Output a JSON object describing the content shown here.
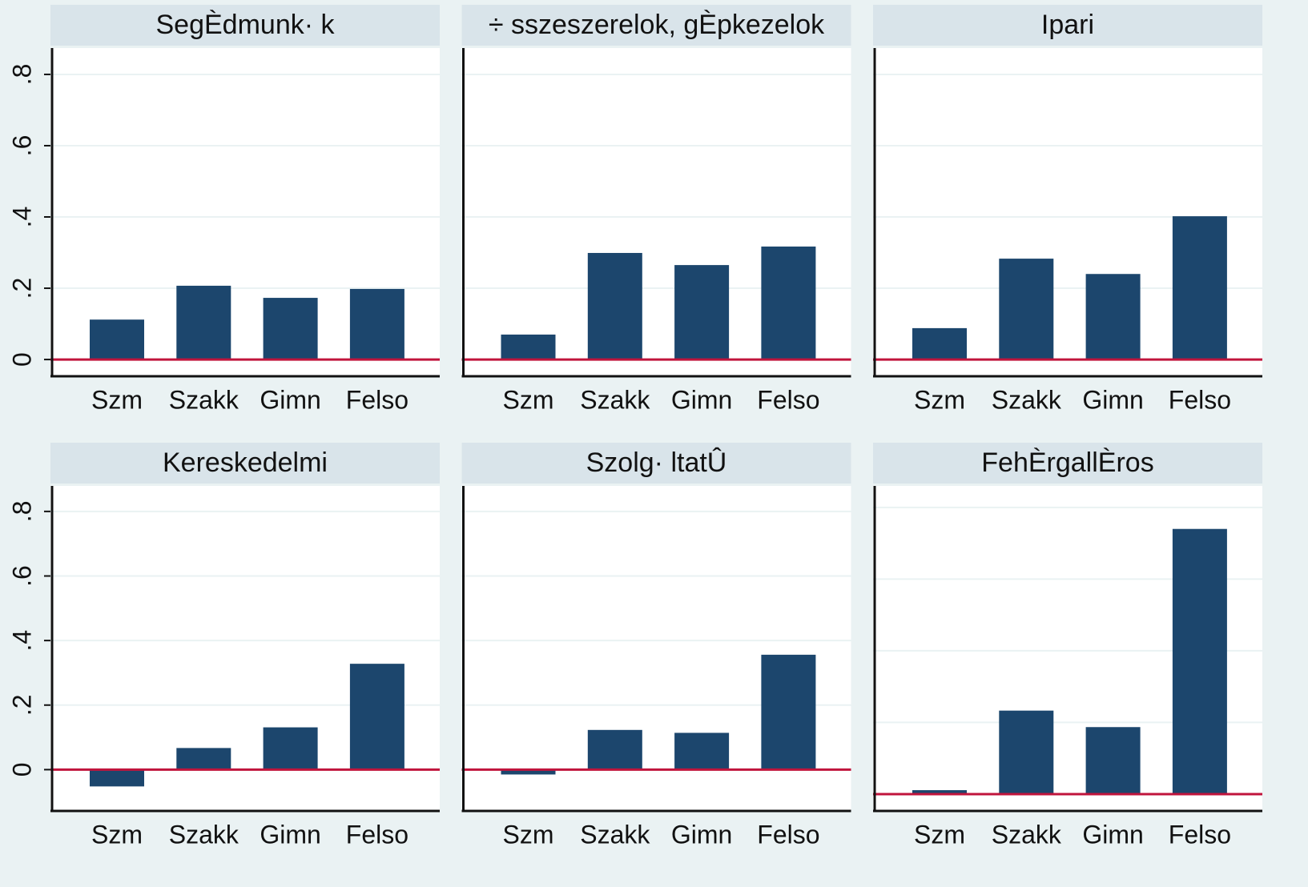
{
  "chart_data": [
    {
      "type": "bar",
      "title": "SegÈdmunk· k",
      "categories": [
        "Szm",
        "Szakk",
        "Gimn",
        "Felso"
      ],
      "values": [
        0.112,
        0.207,
        0.173,
        0.198
      ],
      "color": "#1c466d",
      "yline": 0,
      "yline_color": "#c0143c",
      "ylim": [
        -0.047,
        0.874
      ],
      "yticks": [
        0,
        {
          "value": 0.2,
          "label": ".2"
        },
        {
          "value": 0.4,
          "label": ".4"
        },
        {
          "value": 0.6,
          "label": ".6"
        },
        {
          "value": 0.8,
          "label": ".8"
        }
      ],
      "grid": true
    },
    {
      "type": "bar",
      "title": "÷ sszeszerelok, gÈpkezelok",
      "categories": [
        "Szm",
        "Szakk",
        "Gimn",
        "Felso"
      ],
      "values": [
        0.07,
        0.299,
        0.265,
        0.317
      ],
      "color": "#1c466d",
      "yline": 0,
      "yline_color": "#c0143c",
      "ylim": [
        -0.047,
        0.874
      ],
      "yticks": [
        0,
        0.2,
        0.4,
        0.6,
        0.8
      ],
      "grid": true
    },
    {
      "type": "bar",
      "title": "Ipari",
      "categories": [
        "Szm",
        "Szakk",
        "Gimn",
        "Felso"
      ],
      "values": [
        0.088,
        0.283,
        0.24,
        0.402
      ],
      "color": "#1c466d",
      "yline": 0,
      "yline_color": "#c0143c",
      "ylim": [
        -0.047,
        0.874
      ],
      "yticks": [
        0,
        0.2,
        0.4,
        0.6,
        0.8
      ],
      "grid": true
    },
    {
      "type": "bar",
      "title": "Kereskedelmi",
      "categories": [
        "Szm",
        "Szakk",
        "Gimn",
        "Felso"
      ],
      "values": [
        -0.052,
        0.067,
        0.131,
        0.328
      ],
      "color": "#1c466d",
      "yline": 0,
      "yline_color": "#c0143c",
      "ylim": [
        -0.128,
        0.879
      ],
      "yticks": [
        0,
        {
          "value": 0.2,
          "label": ".2"
        },
        {
          "value": 0.4,
          "label": ".4"
        },
        {
          "value": 0.6,
          "label": ".6"
        },
        {
          "value": 0.8,
          "label": ".8"
        }
      ],
      "grid": true
    },
    {
      "type": "bar",
      "title": "Szolg· ltatÛ",
      "categories": [
        "Szm",
        "Szakk",
        "Gimn",
        "Felso"
      ],
      "values": [
        -0.015,
        0.123,
        0.114,
        0.356
      ],
      "color": "#1c466d",
      "yline": 0,
      "yline_color": "#c0143c",
      "ylim": [
        -0.128,
        0.879
      ],
      "yticks": [
        0,
        0.2,
        0.4,
        0.6,
        0.8
      ],
      "grid": true
    },
    {
      "type": "bar",
      "title": "FehÈrgallÈros",
      "categories": [
        "Szm",
        "Szakk",
        "Gimn",
        "Felso"
      ],
      "values": [
        0.011,
        0.233,
        0.187,
        0.74
      ],
      "color": "#1c466d",
      "yline": 0,
      "yline_color": "#c0143c",
      "ylim": [
        -0.047,
        0.86
      ],
      "yticks": [
        0,
        0.2,
        0.4,
        0.6,
        0.8
      ],
      "grid": true
    }
  ]
}
